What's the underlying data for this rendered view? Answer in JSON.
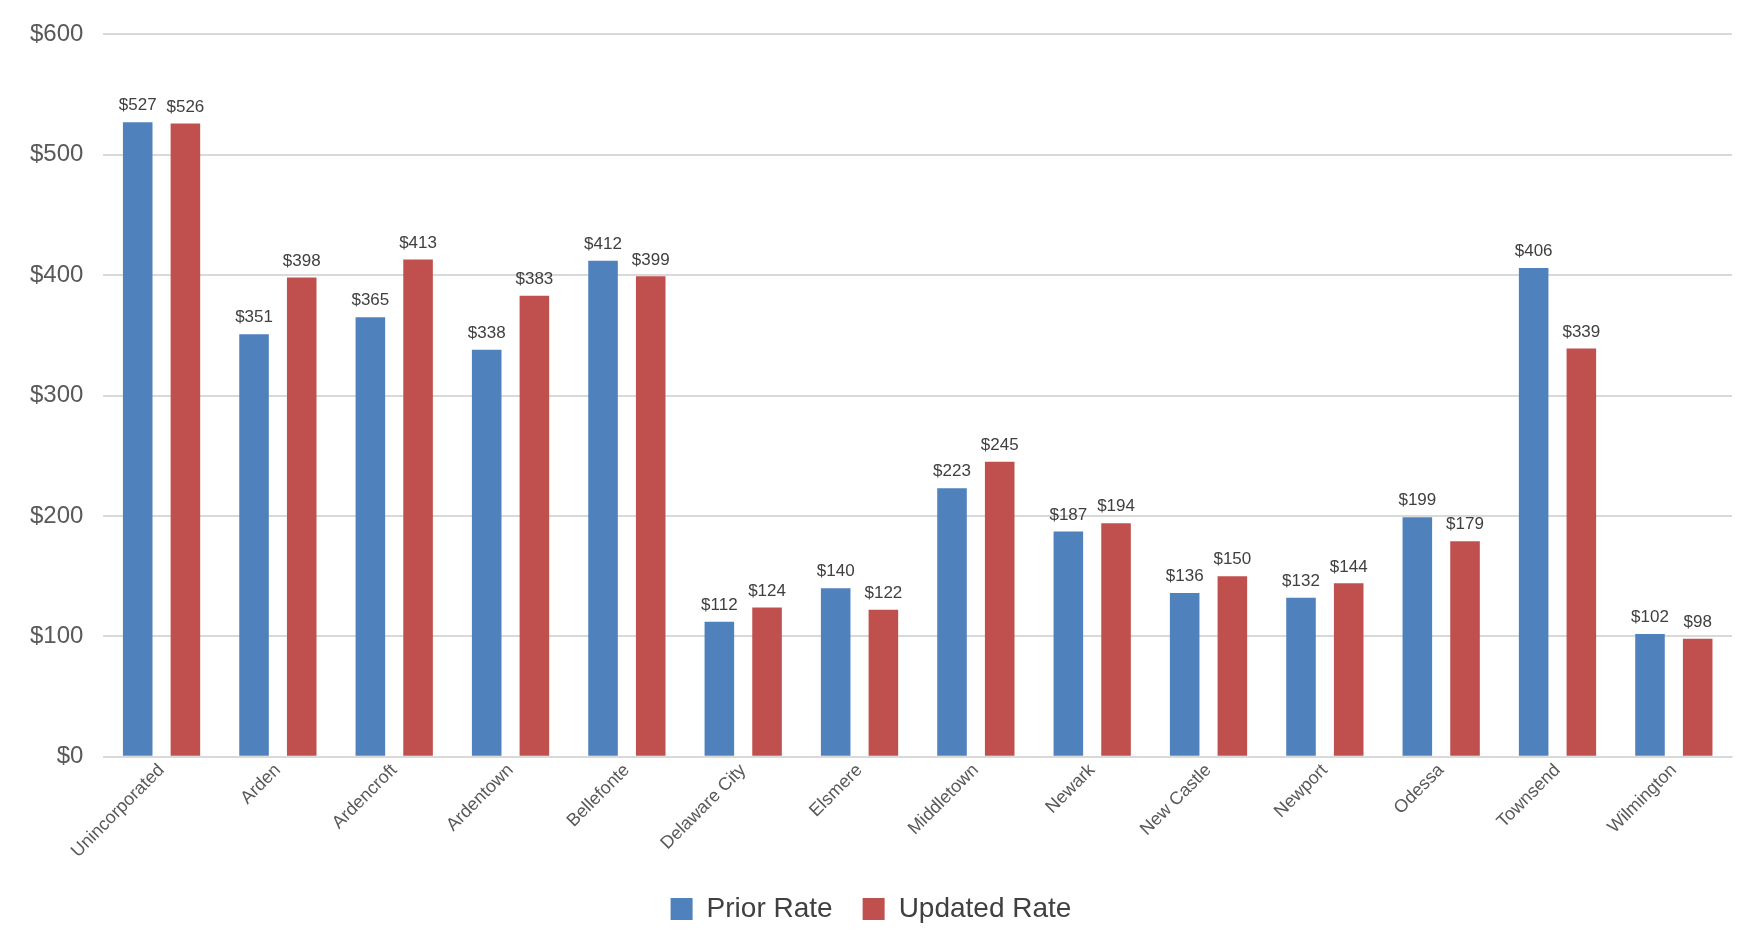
{
  "chart_data": {
    "type": "bar",
    "categories": [
      "Unincorporated",
      "Arden",
      "Ardencroft",
      "Ardentown",
      "Bellefonte",
      "Delaware City",
      "Elsmere",
      "Middletown",
      "Newark",
      "New Castle",
      "Newport",
      "Odessa",
      "Townsend",
      "Wilmington"
    ],
    "series": [
      {
        "name": "Prior Rate",
        "color": "#4f81bd",
        "values": [
          527,
          351,
          365,
          338,
          412,
          112,
          140,
          223,
          187,
          136,
          132,
          199,
          406,
          102
        ],
        "value_labels": [
          "$527",
          "$351",
          "$365",
          "$338",
          "$412",
          "$112",
          "$140",
          "$223",
          "$187",
          "$136",
          "$132",
          "$199",
          "$406",
          "$102"
        ]
      },
      {
        "name": "Updated Rate",
        "color": "#c0504d",
        "values": [
          526,
          398,
          413,
          383,
          399,
          124,
          122,
          245,
          194,
          150,
          144,
          179,
          339,
          98
        ],
        "value_labels": [
          "$526",
          "$398",
          "$413",
          "$383",
          "$399",
          "$124",
          "$122",
          "$245",
          "$194",
          "$150",
          "$144",
          "$179",
          "$339",
          "$98"
        ]
      }
    ],
    "ylim": [
      0,
      600
    ],
    "yticks": [
      {
        "value": 0,
        "label": "$0"
      },
      {
        "value": 100,
        "label": "$100"
      },
      {
        "value": 200,
        "label": "$200"
      },
      {
        "value": 300,
        "label": "$300"
      },
      {
        "value": 400,
        "label": "$400"
      },
      {
        "value": 500,
        "label": "$500"
      },
      {
        "value": 600,
        "label": "$600"
      }
    ],
    "grid": "y",
    "legend": "bottom"
  }
}
